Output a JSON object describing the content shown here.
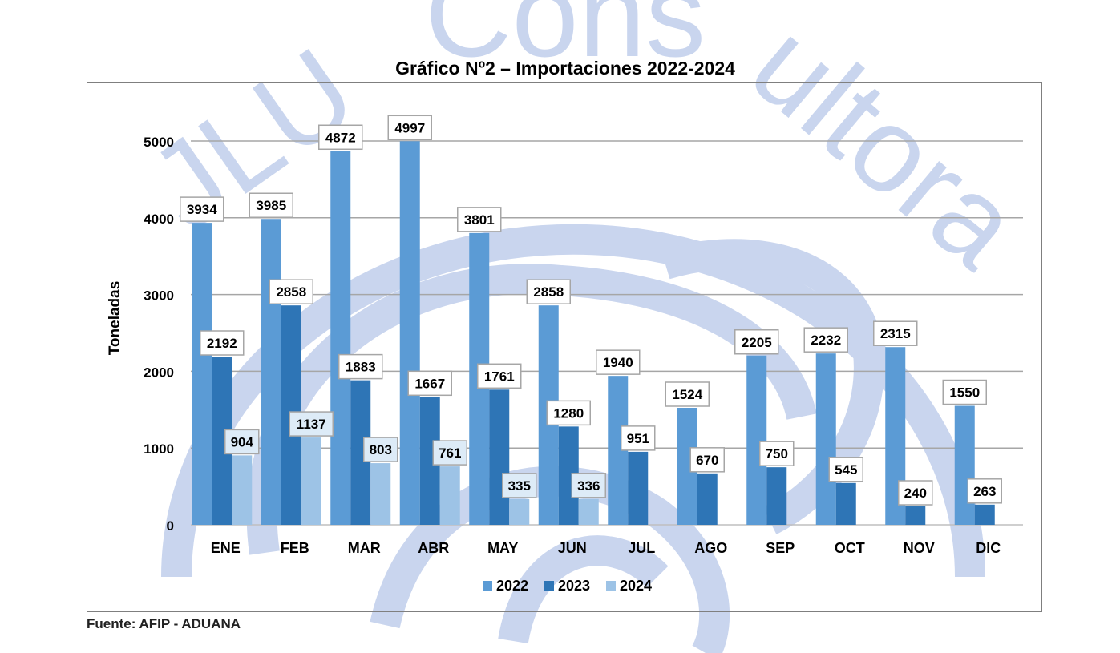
{
  "chart_data": {
    "type": "bar",
    "title": "Gráfico Nº2 – Importaciones 2022-2024",
    "ylabel": "Toneladas",
    "xlabel": "",
    "ylim": [
      0,
      5000
    ],
    "yticks": [
      0,
      1000,
      2000,
      3000,
      4000,
      5000
    ],
    "grid": true,
    "legend_position": "bottom",
    "categories": [
      "ENE",
      "FEB",
      "MAR",
      "ABR",
      "MAY",
      "JUN",
      "JUL",
      "AGO",
      "SEP",
      "OCT",
      "NOV",
      "DIC"
    ],
    "series": [
      {
        "name": "2022",
        "color": "#5b9bd5",
        "values": [
          3934,
          3985,
          4872,
          4997,
          3801,
          2858,
          1940,
          1524,
          2205,
          2232,
          2315,
          1550
        ]
      },
      {
        "name": "2023",
        "color": "#2e75b6",
        "values": [
          2192,
          2858,
          1883,
          1667,
          1761,
          1280,
          951,
          670,
          750,
          545,
          240,
          263
        ]
      },
      {
        "name": "2024",
        "color": "#9dc3e6",
        "values": [
          904,
          1137,
          803,
          761,
          335,
          336,
          null,
          null,
          null,
          null,
          null,
          null
        ]
      }
    ]
  },
  "source": "Fuente: AFIP - ADUANA",
  "watermark": {
    "text": "JLU Consultora",
    "color": "#c9d5ee"
  }
}
